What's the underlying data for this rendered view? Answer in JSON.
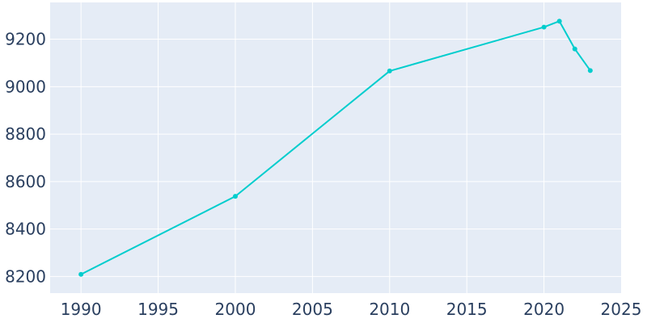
{
  "chart_data": {
    "type": "line",
    "title": "",
    "xlabel": "",
    "ylabel": "",
    "x": [
      1990,
      2000,
      2010,
      2020,
      2021,
      2022,
      2023
    ],
    "series": [
      {
        "values": [
          8209,
          8538,
          9066,
          9251,
          9276,
          9159,
          9068
        ]
      }
    ],
    "xlim": [
      1988,
      2025
    ],
    "ylim": [
      8130,
      9355
    ],
    "x_ticks": [
      1990,
      1995,
      2000,
      2005,
      2010,
      2015,
      2020,
      2025
    ],
    "y_ticks": [
      8200,
      8400,
      8600,
      8800,
      9000,
      9200
    ],
    "grid": true,
    "legend": "none",
    "colors": {
      "line": "#00cdcd",
      "plot_bg": "#e5ecf6",
      "grid": "#ffffff",
      "tick_text": "#2a3f5f"
    }
  }
}
